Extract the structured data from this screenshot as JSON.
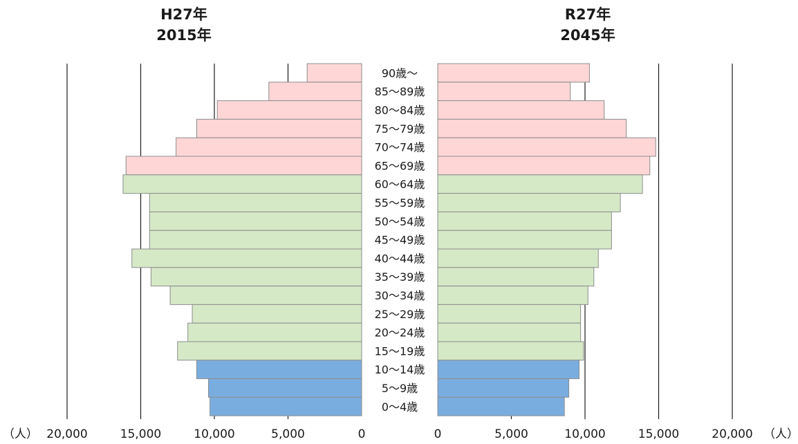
{
  "titles": {
    "left": {
      "era": "H27年",
      "year": "2015年"
    },
    "right": {
      "era": "R27年",
      "year": "2045年"
    }
  },
  "unit_label": "（人）",
  "colors": {
    "elderly": "#ffd6d6",
    "working": "#d5e9c6",
    "youth": "#7aaddf",
    "bar_border": "#8c8c8c",
    "grid": "#1a1a1a"
  },
  "chart_data": {
    "type": "bar",
    "orientation": "horizontal-population-pyramid",
    "categories": [
      "90歳～",
      "85～89歳",
      "80～84歳",
      "75～79歳",
      "70～74歳",
      "65～69歳",
      "60～64歳",
      "55～59歳",
      "50～54歳",
      "45～49歳",
      "40～44歳",
      "35～39歳",
      "30～34歳",
      "25～29歳",
      "20～24歳",
      "15～19歳",
      "10～14歳",
      "5～9歳",
      "0～4歳"
    ],
    "age_group": [
      "elderly",
      "elderly",
      "elderly",
      "elderly",
      "elderly",
      "elderly",
      "working",
      "working",
      "working",
      "working",
      "working",
      "working",
      "working",
      "working",
      "working",
      "working",
      "youth",
      "youth",
      "youth"
    ],
    "series": [
      {
        "name": "2015年",
        "side": "left",
        "values": [
          3700,
          6300,
          9800,
          11200,
          12600,
          16000,
          16200,
          14400,
          14400,
          14400,
          15600,
          14300,
          13000,
          11500,
          11800,
          12500,
          11200,
          10400,
          10300
        ]
      },
      {
        "name": "2045年",
        "side": "right",
        "values": [
          10300,
          9000,
          11300,
          12800,
          14800,
          14400,
          13900,
          12400,
          11800,
          11800,
          10900,
          10600,
          10200,
          9700,
          9700,
          9900,
          9600,
          8900,
          8600
        ]
      }
    ],
    "xlim": [
      0,
      20000
    ],
    "xticks": [
      "0",
      "5,000",
      "10,000",
      "15,000",
      "20,000"
    ],
    "grid": true,
    "legend": "none"
  }
}
